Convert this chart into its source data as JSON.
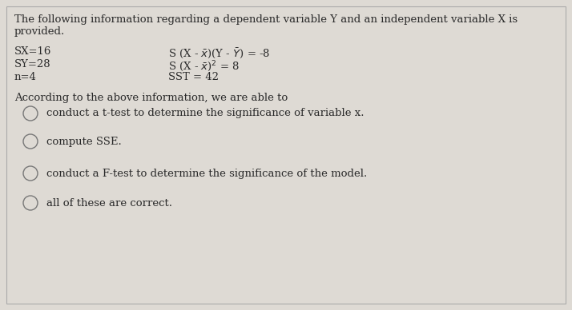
{
  "bg_color": "#dedad4",
  "text_color": "#2a2a2a",
  "title_line1": "The following information regarding a dependent variable Y and an independent variable X is",
  "title_line2": "provided.",
  "left_stats": [
    "SX=16",
    "SY=28",
    "n=4"
  ],
  "question_text": "According to the above information, we are able to",
  "options": [
    "conduct a t-test to determine the significance of variable x.",
    "compute SSE.",
    "conduct a F-test to determine the significance of the model.",
    "all of these are correct."
  ],
  "font_size": 9.5,
  "circle_color": "#888888",
  "border_color": "#aaaaaa"
}
